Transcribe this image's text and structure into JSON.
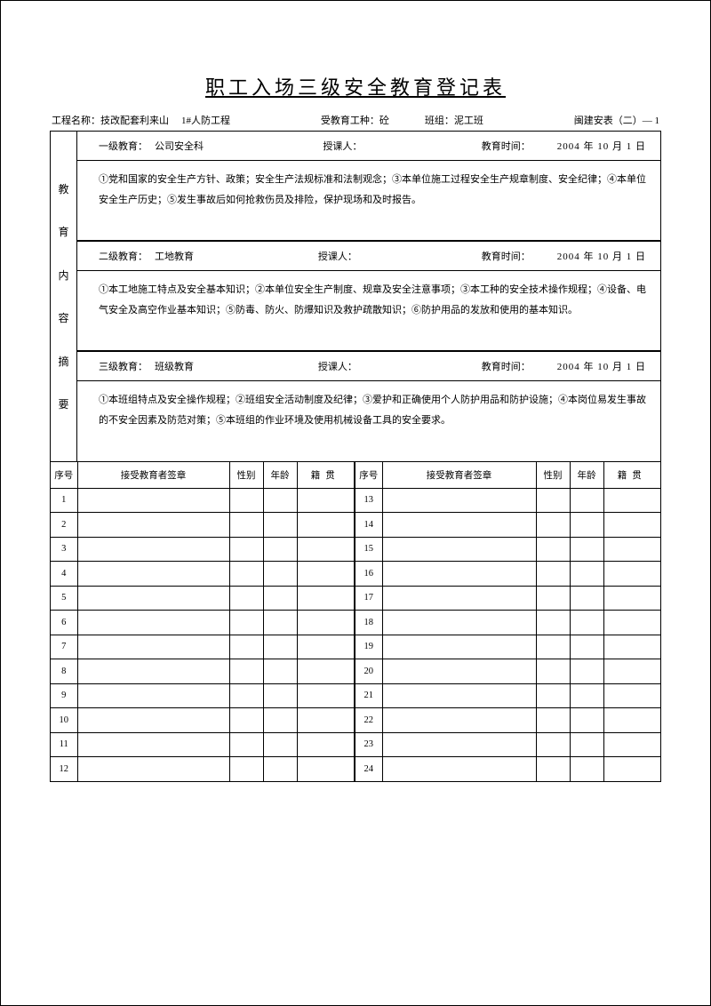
{
  "title": "职工入场三级安全教育登记表",
  "meta": {
    "proj_label": "工程名称：",
    "proj_value": "技改配套利来山",
    "proj_sub": "1#人防工程",
    "worktype_label": "受教育工种：",
    "worktype_value": "砼",
    "team_label": "班组：",
    "team_value": "泥工班",
    "doc_code": "闽建安表（二）— 1"
  },
  "side_label_chars": [
    "教",
    "育",
    "内",
    "容",
    "摘",
    "要"
  ],
  "levels": [
    {
      "head_label": "一级教育：",
      "head_value": "公司安全科",
      "lecturer_label": "授课人：",
      "time_label": "教育时间：",
      "date": "2004 年 10 月 1  日",
      "content": "①党和国家的安全生产方针、政策；安全生产法规标准和法制观念；③本单位施工过程安全生产规章制度、安全纪律；④本单位安全生产历史；⑤发生事故后如何抢救伤员及排险，保护现场和及时报告。"
    },
    {
      "head_label": "二级教育：",
      "head_value": "工地教育",
      "lecturer_label": "授课人：",
      "time_label": "教育时间：",
      "date": "2004 年 10  月 1  日",
      "content": "①本工地施工特点及安全基本知识；②本单位安全生产制度、规章及安全注意事项；③本工种的安全技术操作规程；④设备、电气安全及高空作业基本知识；⑤防毒、防火、防爆知识及救护疏散知识；⑥防护用品的发放和使用的基本知识。"
    },
    {
      "head_label": "三级教育：",
      "head_value": "班级教育",
      "lecturer_label": "授课人：",
      "time_label": "教育时间：",
      "date": "2004 年 10  月 1  日",
      "content": "①本班组特点及安全操作规程；②班组安全活动制度及纪律；③爱护和正确使用个人防护用品和防护设施；④本岗位易发生事故的不安全因素及防范对策；⑤本班组的作业环境及使用机械设备工具的安全要求。"
    }
  ],
  "sig_headers": {
    "num": "序号",
    "sig": "接受教育者签章",
    "sex": "性别",
    "age": "年龄",
    "place": "籍贯"
  },
  "left_nums": [
    "1",
    "2",
    "3",
    "4",
    "5",
    "6",
    "7",
    "8",
    "9",
    "10",
    "11",
    "12"
  ],
  "right_nums": [
    "13",
    "14",
    "15",
    "16",
    "17",
    "18",
    "19",
    "20",
    "21",
    "22",
    "23",
    "24"
  ]
}
